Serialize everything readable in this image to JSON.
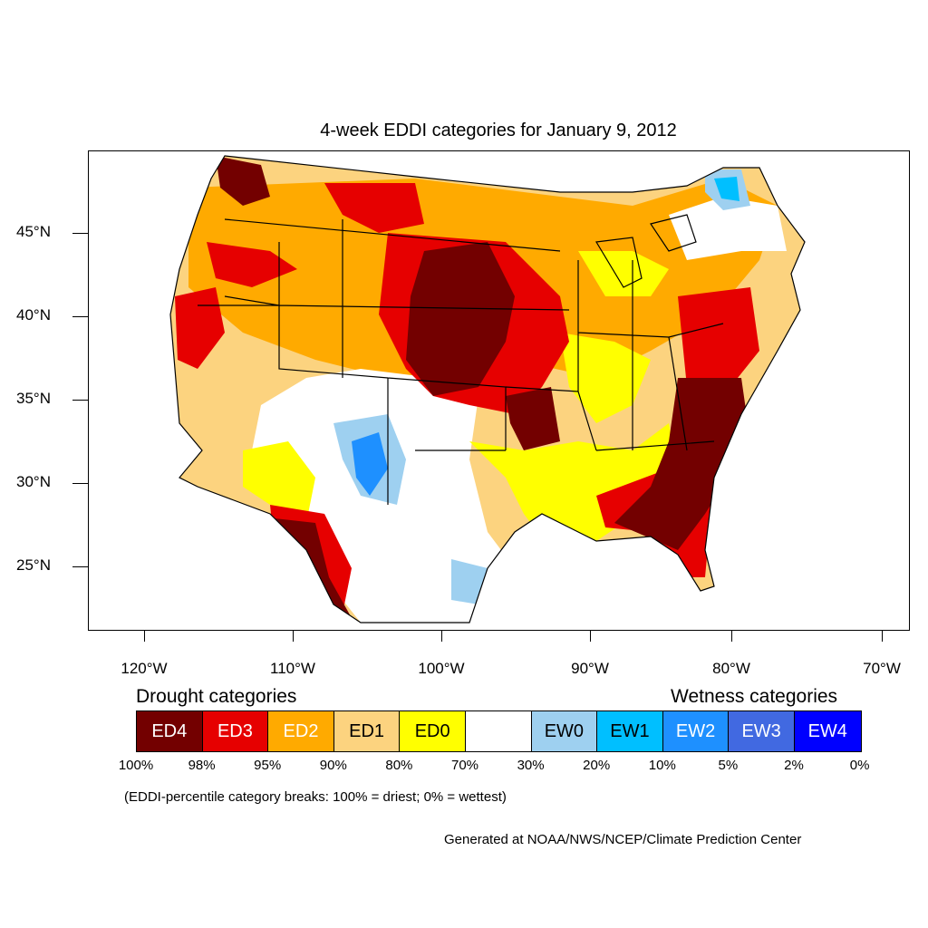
{
  "title": "4-week EDDI categories for January 9, 2012",
  "lat_labels": [
    "45°N",
    "40°N",
    "35°N",
    "30°N",
    "25°N"
  ],
  "lon_labels": [
    "120°W",
    "110°W",
    "100°W",
    "90°W",
    "80°W",
    "70°W"
  ],
  "legend": {
    "drought_heading": "Drought categories",
    "wetness_heading": "Wetness categories",
    "categories": [
      {
        "label": "ED4",
        "color": "#730000",
        "text_color": "#ffffff"
      },
      {
        "label": "ED3",
        "color": "#e60000",
        "text_color": "#ffffff"
      },
      {
        "label": "ED2",
        "color": "#ffaa00",
        "text_color": "#ffffff"
      },
      {
        "label": "ED1",
        "color": "#fcd37f",
        "text_color": "#000000"
      },
      {
        "label": "ED0",
        "color": "#ffff00",
        "text_color": "#000000"
      },
      {
        "label": "",
        "color": "#ffffff",
        "text_color": "#000000"
      },
      {
        "label": "EW0",
        "color": "#9ed0f0",
        "text_color": "#000000"
      },
      {
        "label": "EW1",
        "color": "#00bfff",
        "text_color": "#000000"
      },
      {
        "label": "EW2",
        "color": "#1e90ff",
        "text_color": "#ffffff"
      },
      {
        "label": "EW3",
        "color": "#4169e1",
        "text_color": "#ffffff"
      },
      {
        "label": "EW4",
        "color": "#0000ff",
        "text_color": "#ffffff"
      }
    ],
    "percentiles": [
      "100%",
      "98%",
      "95%",
      "90%",
      "80%",
      "70%",
      "30%",
      "20%",
      "10%",
      "5%",
      "2%",
      "0%"
    ]
  },
  "note": "(EDDI-percentile category breaks: 100% = driest; 0% = wettest)",
  "credit": "Generated at NOAA/NWS/NCEP/Climate Prediction Center"
}
